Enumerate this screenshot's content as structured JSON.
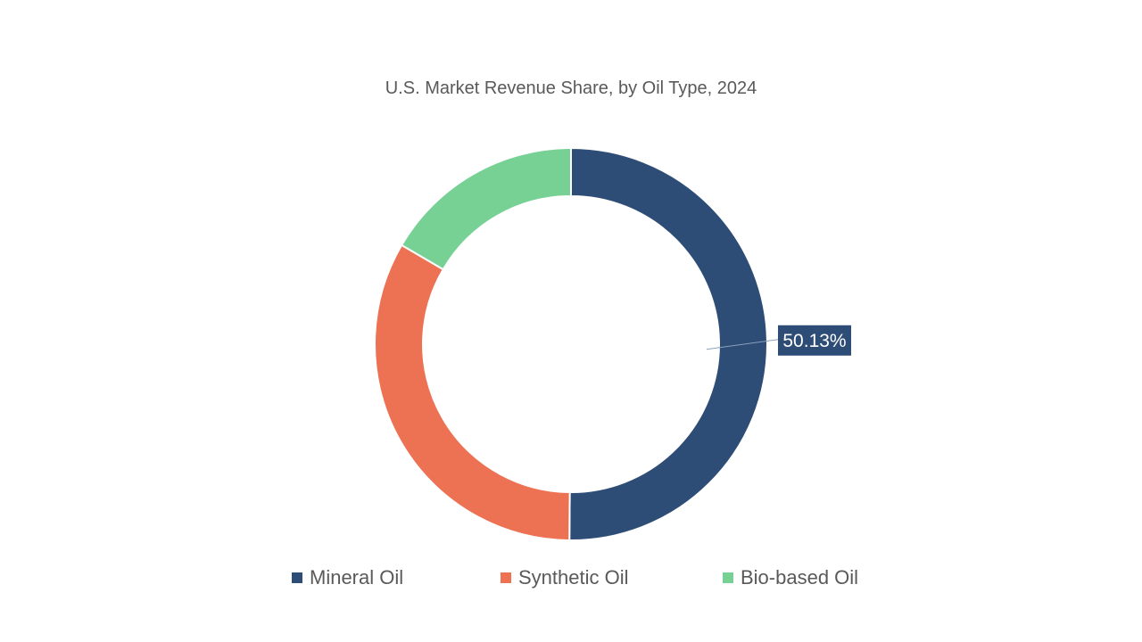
{
  "chart_data": {
    "type": "pie",
    "title": "U.S. Market Revenue Share, by Oil Type, 2024",
    "categories": [
      "Mineral Oil",
      "Synthetic Oil",
      "Bio-based Oil"
    ],
    "values": [
      50.13,
      33.3,
      16.57
    ],
    "colors": [
      "#2e4d76",
      "#ed7254",
      "#77d195"
    ],
    "data_labels": [
      "50.13%",
      "",
      ""
    ],
    "donut": true,
    "legend_position": "bottom"
  }
}
